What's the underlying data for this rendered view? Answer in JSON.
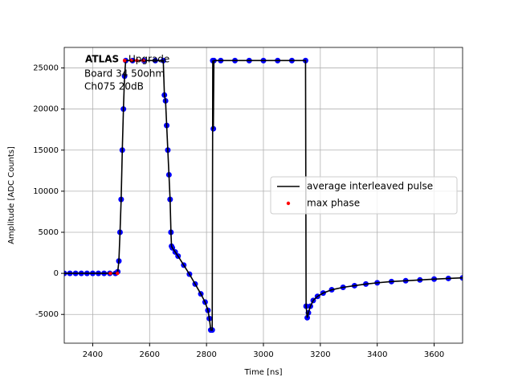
{
  "chart_data": {
    "type": "line",
    "xlabel": "Time [ns]",
    "ylabel": "Amplitude [ADC Counts]",
    "annotations": [
      "ATLAS",
      "Upgrade",
      "Board 34 50ohm",
      "Ch075 20dB"
    ],
    "xlim": [
      2300,
      3700
    ],
    "ylim": [
      -8500,
      27500
    ],
    "xticks": [
      2400,
      2600,
      2800,
      3000,
      3200,
      3400,
      3600
    ],
    "yticks": [
      -5000,
      0,
      5000,
      10000,
      15000,
      20000,
      25000
    ],
    "grid": true,
    "legend_loc": "center right",
    "series": [
      {
        "name": "average interleaved pulse",
        "color": "#000000",
        "marker_color": "#0000ff",
        "x": [
          2300,
          2320,
          2340,
          2360,
          2380,
          2400,
          2420,
          2440,
          2460,
          2480,
          2488,
          2492,
          2496,
          2500,
          2504,
          2508,
          2512,
          2516,
          2540,
          2580,
          2620,
          2648,
          2652,
          2656,
          2660,
          2664,
          2668,
          2672,
          2675,
          2677,
          2680,
          2690,
          2700,
          2720,
          2740,
          2760,
          2780,
          2795,
          2805,
          2810,
          2815,
          2820,
          2822,
          2824,
          2826,
          2850,
          2900,
          2950,
          3000,
          3050,
          3100,
          3148,
          3150,
          3154,
          3158,
          3165,
          3175,
          3190,
          3210,
          3240,
          3280,
          3320,
          3360,
          3400,
          3450,
          3500,
          3550,
          3600,
          3650,
          3700
        ],
        "values": [
          0,
          0,
          0,
          0,
          0,
          0,
          0,
          0,
          0,
          0,
          200,
          1500,
          5000,
          9000,
          15000,
          20000,
          24000,
          25900,
          25900,
          25900,
          25900,
          25900,
          21700,
          21000,
          18000,
          15000,
          12000,
          9000,
          5000,
          3300,
          3100,
          2600,
          2100,
          1000,
          -100,
          -1300,
          -2500,
          -3500,
          -4500,
          -5500,
          -6900,
          -6900,
          25900,
          17600,
          25900,
          25900,
          25900,
          25900,
          25900,
          25900,
          25900,
          25900,
          -4000,
          -5400,
          -4800,
          -4000,
          -3300,
          -2800,
          -2400,
          -2000,
          -1700,
          -1500,
          -1300,
          -1150,
          -1000,
          -900,
          -800,
          -700,
          -620,
          -550
        ]
      },
      {
        "name": "max phase",
        "color": "#ff0000",
        "x": [
          2462,
          2487,
          2512,
          2535,
          2555,
          2578
        ],
        "values": [
          0,
          0,
          25900,
          25900,
          25900,
          25900
        ]
      }
    ]
  }
}
